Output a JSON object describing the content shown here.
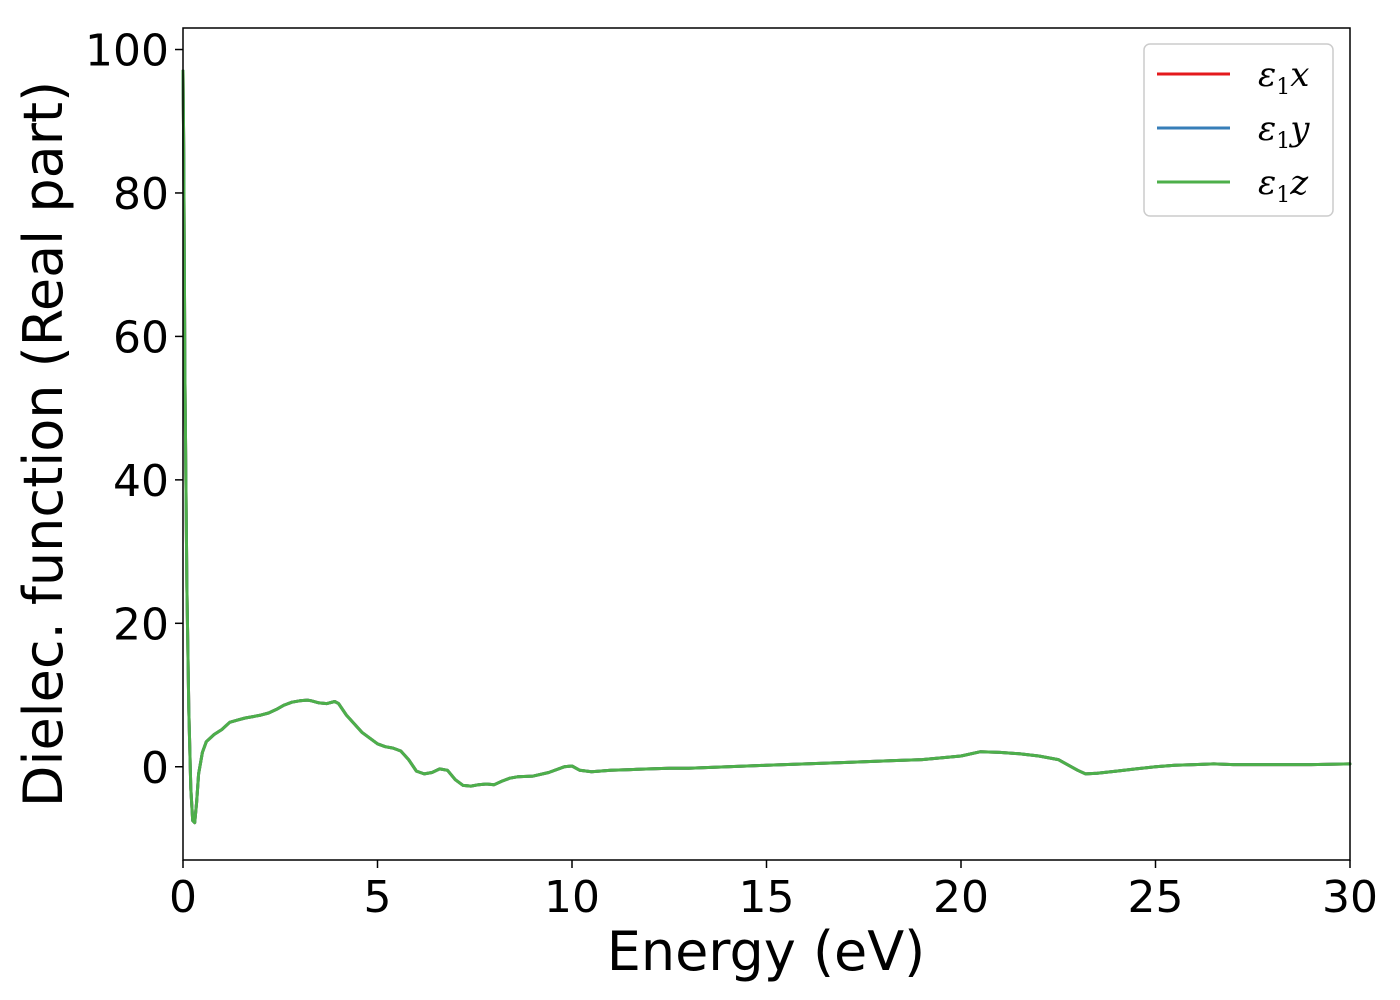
{
  "chart_data": {
    "type": "line",
    "title": "",
    "xlabel": "Energy (eV)",
    "ylabel": "Dielec. function (Real part)",
    "xlim": [
      0,
      30
    ],
    "ylim": [
      -13,
      103
    ],
    "xticks": [
      0,
      5,
      10,
      15,
      20,
      25,
      30
    ],
    "yticks": [
      0,
      20,
      40,
      60,
      80,
      100
    ],
    "grid": false,
    "legend": {
      "placement": "top-right",
      "entries": [
        {
          "sym": "ε",
          "sub": "1",
          "var": "x",
          "color": "#e41a1c"
        },
        {
          "sym": "ε",
          "sub": "1",
          "var": "y",
          "color": "#377eb8"
        },
        {
          "sym": "ε",
          "sub": "1",
          "var": "z",
          "color": "#4daf4a"
        }
      ]
    },
    "x": [
      0.0,
      0.02,
      0.05,
      0.1,
      0.15,
      0.2,
      0.25,
      0.3,
      0.35,
      0.4,
      0.5,
      0.6,
      0.8,
      1.0,
      1.2,
      1.4,
      1.6,
      1.8,
      2.0,
      2.2,
      2.4,
      2.6,
      2.8,
      3.0,
      3.2,
      3.3,
      3.5,
      3.7,
      3.9,
      4.0,
      4.2,
      4.4,
      4.6,
      4.8,
      5.0,
      5.2,
      5.4,
      5.6,
      5.8,
      6.0,
      6.2,
      6.4,
      6.6,
      6.8,
      7.0,
      7.2,
      7.4,
      7.6,
      7.8,
      8.0,
      8.2,
      8.4,
      8.6,
      9.0,
      9.4,
      9.8,
      10.0,
      10.2,
      10.5,
      11.0,
      11.5,
      12.0,
      12.5,
      13.0,
      13.5,
      14.0,
      15.0,
      16.0,
      17.0,
      18.0,
      19.0,
      20.0,
      20.5,
      21.0,
      21.5,
      22.0,
      22.5,
      23.0,
      23.2,
      23.5,
      24.0,
      24.5,
      25.0,
      25.5,
      26.0,
      26.5,
      27.0,
      28.0,
      29.0,
      30.0
    ],
    "series": [
      {
        "values": [
          97.0,
          85.0,
          55.0,
          25.0,
          8.0,
          -3.0,
          -7.5,
          -7.8,
          -5.0,
          -1.0,
          2.0,
          3.5,
          4.5,
          5.2,
          6.2,
          6.5,
          6.8,
          7.0,
          7.2,
          7.5,
          8.0,
          8.6,
          9.0,
          9.2,
          9.3,
          9.2,
          8.9,
          8.8,
          9.1,
          8.8,
          7.2,
          6.0,
          4.8,
          4.0,
          3.2,
          2.8,
          2.6,
          2.2,
          1.0,
          -0.6,
          -1.0,
          -0.8,
          -0.3,
          -0.5,
          -1.8,
          -2.6,
          -2.7,
          -2.5,
          -2.4,
          -2.5,
          -2.0,
          -1.6,
          -1.4,
          -1.3,
          -0.8,
          0.0,
          0.1,
          -0.5,
          -0.7,
          -0.5,
          -0.4,
          -0.3,
          -0.2,
          -0.2,
          -0.1,
          0.0,
          0.2,
          0.4,
          0.6,
          0.8,
          1.0,
          1.5,
          2.1,
          2.0,
          1.8,
          1.5,
          1.0,
          -0.5,
          -1.0,
          -0.9,
          -0.6,
          -0.3,
          0.0,
          0.2,
          0.3,
          0.4,
          0.3,
          0.3,
          0.3,
          0.4
        ]
      },
      {
        "values": [
          97.0,
          85.0,
          55.0,
          25.0,
          8.0,
          -3.0,
          -7.5,
          -7.8,
          -5.0,
          -1.0,
          2.0,
          3.5,
          4.5,
          5.2,
          6.2,
          6.5,
          6.8,
          7.0,
          7.2,
          7.5,
          8.0,
          8.6,
          9.0,
          9.2,
          9.3,
          9.2,
          8.9,
          8.8,
          9.1,
          8.8,
          7.2,
          6.0,
          4.8,
          4.0,
          3.2,
          2.8,
          2.6,
          2.2,
          1.0,
          -0.6,
          -1.0,
          -0.8,
          -0.3,
          -0.5,
          -1.8,
          -2.6,
          -2.7,
          -2.5,
          -2.4,
          -2.5,
          -2.0,
          -1.6,
          -1.4,
          -1.3,
          -0.8,
          0.0,
          0.1,
          -0.5,
          -0.7,
          -0.5,
          -0.4,
          -0.3,
          -0.2,
          -0.2,
          -0.1,
          0.0,
          0.2,
          0.4,
          0.6,
          0.8,
          1.0,
          1.5,
          2.1,
          2.0,
          1.8,
          1.5,
          1.0,
          -0.5,
          -1.0,
          -0.9,
          -0.6,
          -0.3,
          0.0,
          0.2,
          0.3,
          0.4,
          0.3,
          0.3,
          0.3,
          0.4
        ]
      },
      {
        "values": [
          97.0,
          85.0,
          55.0,
          25.0,
          8.0,
          -3.0,
          -7.5,
          -7.8,
          -5.0,
          -1.0,
          2.0,
          3.5,
          4.5,
          5.2,
          6.2,
          6.5,
          6.8,
          7.0,
          7.2,
          7.5,
          8.0,
          8.6,
          9.0,
          9.2,
          9.3,
          9.2,
          8.9,
          8.8,
          9.1,
          8.8,
          7.2,
          6.0,
          4.8,
          4.0,
          3.2,
          2.8,
          2.6,
          2.2,
          1.0,
          -0.6,
          -1.0,
          -0.8,
          -0.3,
          -0.5,
          -1.8,
          -2.6,
          -2.7,
          -2.5,
          -2.4,
          -2.5,
          -2.0,
          -1.6,
          -1.4,
          -1.3,
          -0.8,
          0.0,
          0.1,
          -0.5,
          -0.7,
          -0.5,
          -0.4,
          -0.3,
          -0.2,
          -0.2,
          -0.1,
          0.0,
          0.2,
          0.4,
          0.6,
          0.8,
          1.0,
          1.5,
          2.1,
          2.0,
          1.8,
          1.5,
          1.0,
          -0.5,
          -1.0,
          -0.9,
          -0.6,
          -0.3,
          0.0,
          0.2,
          0.3,
          0.4,
          0.3,
          0.3,
          0.3,
          0.4
        ]
      }
    ]
  }
}
